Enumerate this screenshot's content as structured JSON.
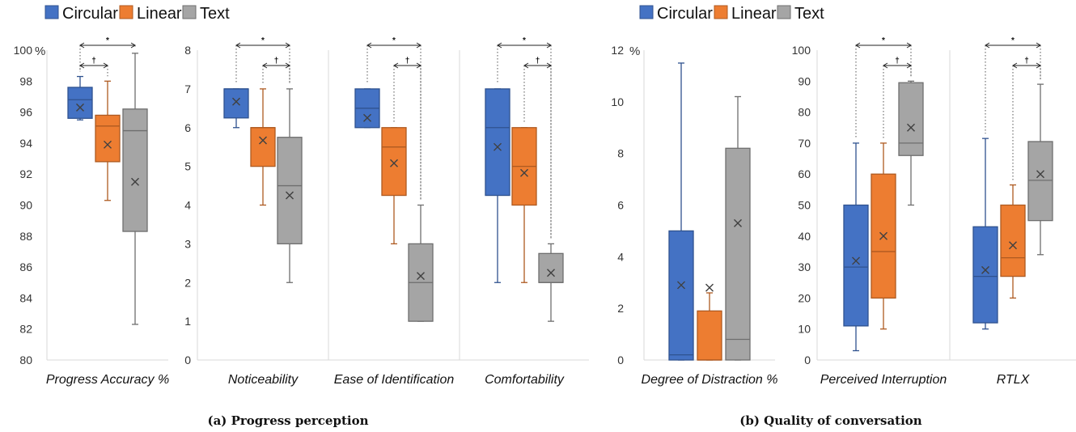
{
  "legend": [
    {
      "name": "Circular",
      "color": "#4472C4",
      "edge": "#2F528F"
    },
    {
      "name": "Linear",
      "color": "#ED7D31",
      "edge": "#AE5A21"
    },
    {
      "name": "Text",
      "color": "#A5A5A5",
      "edge": "#6E6E6E"
    }
  ],
  "captions": {
    "a": "(a) Progress perception",
    "b": "(b) Quality of conversation"
  },
  "chart_data": [
    {
      "type": "box",
      "panel": "a",
      "ylim": [
        80,
        100
      ],
      "yticks": [
        "80",
        "82",
        "84",
        "86",
        "88",
        "90",
        "92",
        "94",
        "96",
        "98",
        "100"
      ],
      "y_unit": "%",
      "categories": [
        "Progress Accuracy %"
      ],
      "series": [
        {
          "name": "Circular",
          "boxes": [
            {
              "min": 95.5,
              "q1": 95.6,
              "median": 96.8,
              "q3": 97.6,
              "max": 98.3,
              "mean": 96.3
            }
          ]
        },
        {
          "name": "Linear",
          "boxes": [
            {
              "min": 90.3,
              "q1": 92.8,
              "median": 95.1,
              "q3": 95.8,
              "max": 98.0,
              "mean": 93.9
            }
          ]
        },
        {
          "name": "Text",
          "boxes": [
            {
              "min": 82.3,
              "q1": 88.3,
              "median": 94.8,
              "q3": 96.2,
              "max": 99.8,
              "mean": 91.5
            }
          ]
        }
      ],
      "significance": [
        {
          "symbol": "*",
          "from": "Circular",
          "to": "Text"
        },
        {
          "symbol": "†",
          "from": "Circular",
          "to": "Linear"
        }
      ]
    },
    {
      "type": "box",
      "panel": "a",
      "ylim": [
        0,
        8
      ],
      "yticks": [
        "0",
        "1",
        "2",
        "3",
        "4",
        "5",
        "6",
        "7",
        "8"
      ],
      "categories": [
        "Noticeability",
        "Ease of Identification",
        "Comfortability"
      ],
      "series": [
        {
          "name": "Circular",
          "boxes": [
            {
              "min": 6.0,
              "q1": 6.25,
              "median": 7.0,
              "q3": 7.0,
              "max": 7.0,
              "mean": 6.67
            },
            {
              "min": 6.0,
              "q1": 6.0,
              "median": 6.5,
              "q3": 7.0,
              "max": 7.0,
              "mean": 6.25
            },
            {
              "min": 2.0,
              "q1": 4.25,
              "median": 6.0,
              "q3": 7.0,
              "max": 7.0,
              "mean": 5.5
            }
          ]
        },
        {
          "name": "Linear",
          "boxes": [
            {
              "min": 4.0,
              "q1": 5.0,
              "median": 6.0,
              "q3": 6.0,
              "max": 7.0,
              "mean": 5.67
            },
            {
              "min": 3.0,
              "q1": 4.25,
              "median": 5.5,
              "q3": 6.0,
              "max": 6.0,
              "mean": 5.08
            },
            {
              "min": 2.0,
              "q1": 4.0,
              "median": 5.0,
              "q3": 6.0,
              "max": 6.0,
              "mean": 4.83
            }
          ]
        },
        {
          "name": "Text",
          "boxes": [
            {
              "min": 2.0,
              "q1": 3.0,
              "median": 4.5,
              "q3": 5.75,
              "max": 7.0,
              "mean": 4.25
            },
            {
              "min": 1.0,
              "q1": 1.0,
              "median": 2.0,
              "q3": 3.0,
              "max": 4.0,
              "mean": 2.17
            },
            {
              "min": 1.0,
              "q1": 2.0,
              "median": 2.0,
              "q3": 2.75,
              "max": 3.0,
              "mean": 2.25
            }
          ]
        }
      ],
      "significance": [
        {
          "symbol": "*",
          "from": "Circular",
          "to": "Text"
        },
        {
          "symbol": "†",
          "from": "Linear",
          "to": "Text"
        }
      ]
    },
    {
      "type": "box",
      "panel": "b",
      "ylim": [
        0,
        12
      ],
      "yticks": [
        "0",
        "2",
        "4",
        "6",
        "8",
        "10",
        "12"
      ],
      "y_unit": "%",
      "categories": [
        "Degree of Distraction %"
      ],
      "series": [
        {
          "name": "Circular",
          "boxes": [
            {
              "min": 0.0,
              "q1": 0.0,
              "median": 0.2,
              "q3": 5.0,
              "max": 11.5,
              "mean": 2.9
            }
          ]
        },
        {
          "name": "Linear",
          "boxes": [
            {
              "min": 0.0,
              "q1": 0.0,
              "median": 0.0,
              "q3": 1.9,
              "max": 2.6,
              "mean": 2.8
            }
          ]
        },
        {
          "name": "Text",
          "boxes": [
            {
              "min": 0.0,
              "q1": 0.0,
              "median": 0.8,
              "q3": 8.2,
              "max": 10.2,
              "mean": 5.3
            }
          ]
        }
      ],
      "significance": []
    },
    {
      "type": "box",
      "panel": "b",
      "ylim": [
        0,
        100
      ],
      "yticks": [
        "0",
        "10",
        "20",
        "30",
        "40",
        "50",
        "60",
        "70",
        "80",
        "90",
        "100"
      ],
      "categories": [
        "Perceived Interruption",
        "RTLX"
      ],
      "series": [
        {
          "name": "Circular",
          "boxes": [
            {
              "min": 3,
              "q1": 11,
              "median": 30,
              "q3": 50,
              "max": 70,
              "mean": 32
            },
            {
              "min": 10,
              "q1": 12,
              "median": 27,
              "q3": 43,
              "max": 71.5,
              "mean": 29
            }
          ]
        },
        {
          "name": "Linear",
          "boxes": [
            {
              "min": 10,
              "q1": 20,
              "median": 35,
              "q3": 60,
              "max": 70,
              "mean": 40
            },
            {
              "min": 20,
              "q1": 27,
              "median": 33,
              "q3": 50,
              "max": 56.5,
              "mean": 37
            }
          ]
        },
        {
          "name": "Text",
          "boxes": [
            {
              "min": 50,
              "q1": 66,
              "median": 70,
              "q3": 89.5,
              "max": 90,
              "mean": 75
            },
            {
              "min": 34,
              "q1": 45,
              "median": 58,
              "q3": 70.5,
              "max": 89,
              "mean": 60
            }
          ]
        }
      ],
      "significance": [
        {
          "symbol": "*",
          "from": "Circular",
          "to": "Text"
        },
        {
          "symbol": "†",
          "from": "Linear",
          "to": "Text"
        }
      ]
    }
  ]
}
